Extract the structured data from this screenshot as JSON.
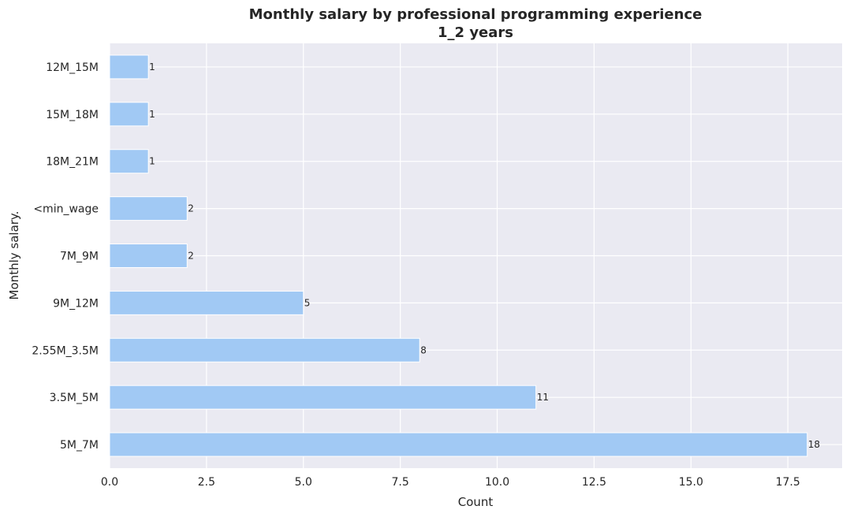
{
  "chart_data": {
    "type": "bar",
    "orientation": "horizontal",
    "title": "Monthly salary by professional programming experience",
    "subtitle": "1_2 years",
    "xlabel": "Count",
    "ylabel": "Monthly salary.",
    "categories": [
      "12M_15M",
      "15M_18M",
      "18M_21M",
      "<min_wage",
      "7M_9M",
      "9M_12M",
      "2.55M_3.5M",
      "3.5M_5M",
      "5M_7M"
    ],
    "values": [
      1,
      1,
      1,
      2,
      2,
      5,
      8,
      11,
      18
    ],
    "xlim": [
      0,
      18.9
    ],
    "xticks": [
      "0.0",
      "2.5",
      "5.0",
      "7.5",
      "10.0",
      "12.5",
      "15.0",
      "17.5"
    ],
    "grid": true,
    "colors": {
      "bar": "#a1c9f4",
      "background": "#eaeaf2",
      "grid": "#ffffff"
    }
  }
}
